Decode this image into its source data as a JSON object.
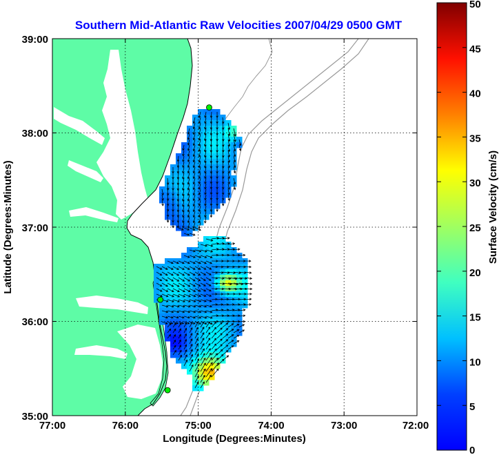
{
  "title": "Southern Mid-Atlantic Raw Velocities 2007/04/29 0500 GMT",
  "x_axis": {
    "label": "Longitude (Degrees:Minutes)",
    "ticks": [
      "77:00",
      "76:00",
      "75:00",
      "74:00",
      "73:00",
      "72:00"
    ]
  },
  "y_axis": {
    "label": "Latitude (Degrees:Minutes)",
    "ticks": [
      "39:00",
      "38:00",
      "37:00",
      "36:00",
      "35:00"
    ]
  },
  "colorbar": {
    "label": "Surface Velocity (cm/s)",
    "ticks": [
      "50",
      "45",
      "40",
      "35",
      "30",
      "25",
      "20",
      "15",
      "10",
      "5",
      "0"
    ],
    "min": 0,
    "max": 50,
    "colormap": "jet"
  },
  "colors": {
    "land": "#5efca6",
    "water": "#ffffff",
    "coastline": "#000000",
    "bathymetry": "#999999",
    "stations": "#00ee00",
    "title": "#0000ff",
    "grid": "#000000"
  },
  "map_extent": {
    "lon_range": [
      -77,
      -72
    ],
    "lat_range": [
      35,
      39
    ]
  },
  "stations": [
    {
      "lon": -74.85,
      "lat": 38.27
    },
    {
      "lon": -75.52,
      "lat": 36.23
    },
    {
      "lon": -75.42,
      "lat": 35.27
    }
  ]
}
